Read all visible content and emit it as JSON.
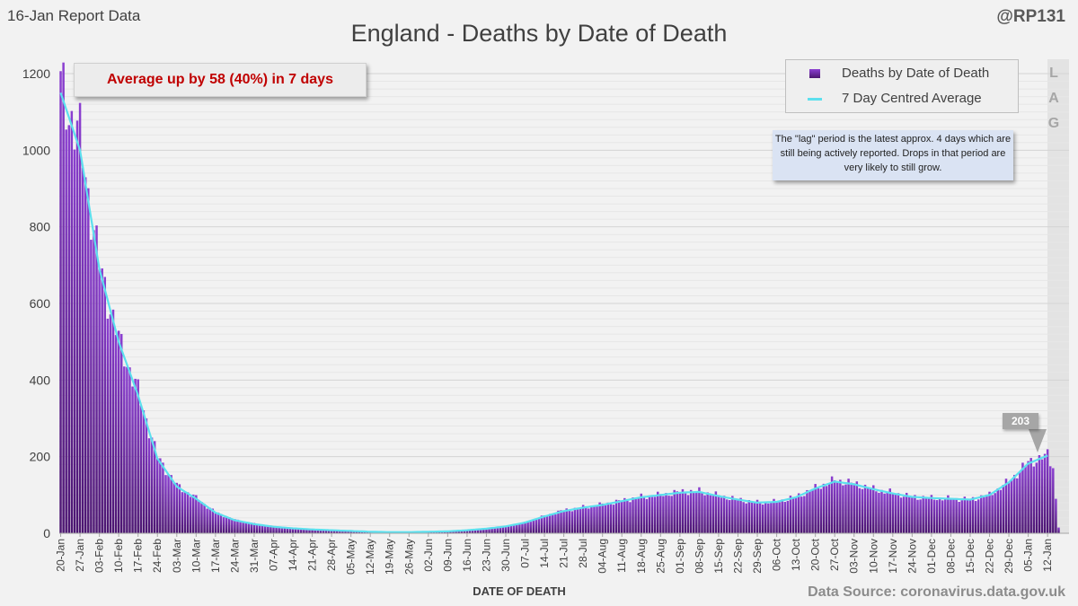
{
  "header": {
    "report_label": "16-Jan Report Data",
    "handle": "@RP131",
    "title": "England - Deaths by Date of Death"
  },
  "callout": {
    "text": "Average up by 58 (40%) in 7 days"
  },
  "legend": {
    "bars_label": "Deaths by Date of Death",
    "line_label": "7 Day Centred Average"
  },
  "note": {
    "text": "The \"lag\" period is the latest approx. 4 days which are still being actively reported. Drops in that period are very likely to still grow."
  },
  "lag_letters": [
    "L",
    "A",
    "G"
  ],
  "peak_label": "203",
  "footer": {
    "xlabel": "DATE OF DEATH",
    "source": "Data Source: coronavirus.data.gov.uk"
  },
  "colors": {
    "bar_top": "#8b3fd1",
    "bar_bottom": "#4b1570",
    "average_line": "#5ce0ee",
    "callout_text": "#c00000",
    "lag_shade": "#e3e3e3"
  },
  "chart_data": {
    "type": "bar",
    "title": "England - Deaths by Date of Death",
    "xlabel": "DATE OF DEATH",
    "ylabel": "",
    "ylim": [
      0,
      1200
    ],
    "yticks": [
      0,
      200,
      400,
      600,
      800,
      1000,
      1200
    ],
    "grid": true,
    "legend_position": "top-right",
    "start_date": "2020-01-20",
    "categories_note": "One bar per day from 20-Jan to 15-Jan",
    "x_tick_labels": [
      "20-Jan",
      "27-Jan",
      "03-Feb",
      "10-Feb",
      "17-Feb",
      "24-Feb",
      "03-Mar",
      "10-Mar",
      "17-Mar",
      "24-Mar",
      "31-Mar",
      "07-Apr",
      "14-Apr",
      "21-Apr",
      "28-Apr",
      "05-May",
      "12-May",
      "19-May",
      "26-May",
      "02-Jun",
      "09-Jun",
      "16-Jun",
      "23-Jun",
      "30-Jun",
      "07-Jul",
      "14-Jul",
      "21-Jul",
      "28-Jul",
      "04-Aug",
      "11-Aug",
      "18-Aug",
      "25-Aug",
      "01-Sep",
      "08-Sep",
      "15-Sep",
      "22-Sep",
      "29-Sep",
      "06-Oct",
      "13-Oct",
      "20-Oct",
      "27-Oct",
      "03-Nov",
      "10-Nov",
      "17-Nov",
      "24-Nov",
      "01-Dec",
      "08-Dec",
      "15-Dec",
      "22-Dec",
      "29-Dec",
      "05-Jan",
      "12-Jan"
    ],
    "series": [
      {
        "name": "Deaths by Date of Death",
        "type": "bar",
        "weekly_anchor_values": [
          1160,
          1030,
          700,
          505,
          370,
          200,
          125,
          92,
          55,
          35,
          25,
          18,
          14,
          11,
          8,
          6,
          4,
          3,
          3,
          4,
          5,
          8,
          12,
          18,
          28,
          45,
          60,
          68,
          75,
          85,
          95,
          100,
          108,
          110,
          98,
          88,
          80,
          82,
          95,
          118,
          138,
          130,
          115,
          105,
          95,
          92,
          90,
          88,
          100,
          135,
          185,
          203
        ],
        "lag_tail_values": [
          175,
          170,
          90,
          15
        ]
      },
      {
        "name": "7 Day Centred Average",
        "type": "line",
        "weekly_anchor_values": [
          1150,
          1000,
          690,
          500,
          360,
          195,
          122,
          90,
          54,
          34,
          24,
          17,
          13,
          10,
          8,
          6,
          4,
          3,
          3,
          4,
          5,
          8,
          12,
          18,
          28,
          44,
          58,
          67,
          74,
          84,
          94,
          100,
          106,
          108,
          97,
          88,
          80,
          82,
          94,
          117,
          135,
          128,
          115,
          104,
          95,
          92,
          90,
          88,
          100,
          133,
          182,
          203
        ]
      }
    ]
  }
}
